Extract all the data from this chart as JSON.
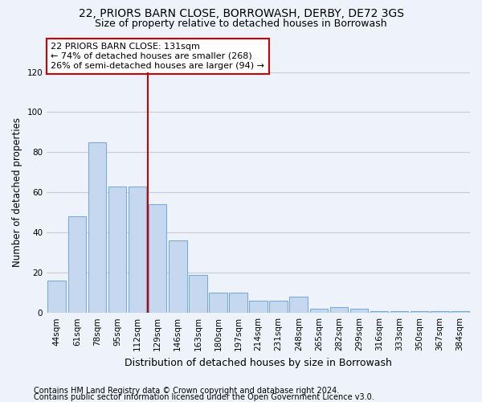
{
  "title1": "22, PRIORS BARN CLOSE, BORROWASH, DERBY, DE72 3GS",
  "title2": "Size of property relative to detached houses in Borrowash",
  "xlabel": "Distribution of detached houses by size in Borrowash",
  "ylabel": "Number of detached properties",
  "categories": [
    "44sqm",
    "61sqm",
    "78sqm",
    "95sqm",
    "112sqm",
    "129sqm",
    "146sqm",
    "163sqm",
    "180sqm",
    "197sqm",
    "214sqm",
    "231sqm",
    "248sqm",
    "265sqm",
    "282sqm",
    "299sqm",
    "316sqm",
    "333sqm",
    "350sqm",
    "367sqm",
    "384sqm"
  ],
  "values": [
    16,
    48,
    85,
    63,
    63,
    54,
    36,
    19,
    10,
    10,
    6,
    6,
    8,
    2,
    3,
    2,
    1,
    1,
    1,
    1,
    1
  ],
  "bar_color": "#c5d8f0",
  "bar_edge_color": "#7badd4",
  "marker_label": "22 PRIORS BARN CLOSE: 131sqm",
  "marker_line1": "← 74% of detached houses are smaller (268)",
  "marker_line2": "26% of semi-detached houses are larger (94) →",
  "annotation_box_color": "#ffffff",
  "annotation_box_edge_color": "#cc0000",
  "vline_color": "#cc0000",
  "vline_x_pos": 4.5,
  "ylim": [
    0,
    120
  ],
  "yticks": [
    0,
    20,
    40,
    60,
    80,
    100,
    120
  ],
  "grid_color": "#cccccc",
  "background_color": "#eef2fb",
  "footer1": "Contains HM Land Registry data © Crown copyright and database right 2024.",
  "footer2": "Contains public sector information licensed under the Open Government Licence v3.0.",
  "title1_fontsize": 10,
  "title2_fontsize": 9,
  "xlabel_fontsize": 9,
  "ylabel_fontsize": 8.5,
  "tick_fontsize": 7.5,
  "annot_fontsize": 8,
  "footer_fontsize": 7
}
